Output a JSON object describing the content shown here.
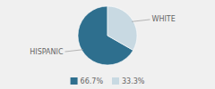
{
  "chart_data": {
    "type": "pie",
    "categories": [
      "HISPANIC",
      "WHITE"
    ],
    "values": [
      66.7,
      33.3
    ],
    "value_labels": [
      "66.7%",
      "33.3%"
    ],
    "colors": [
      "#2e6f8e",
      "#c8d9e2"
    ],
    "legend": "bottom"
  }
}
